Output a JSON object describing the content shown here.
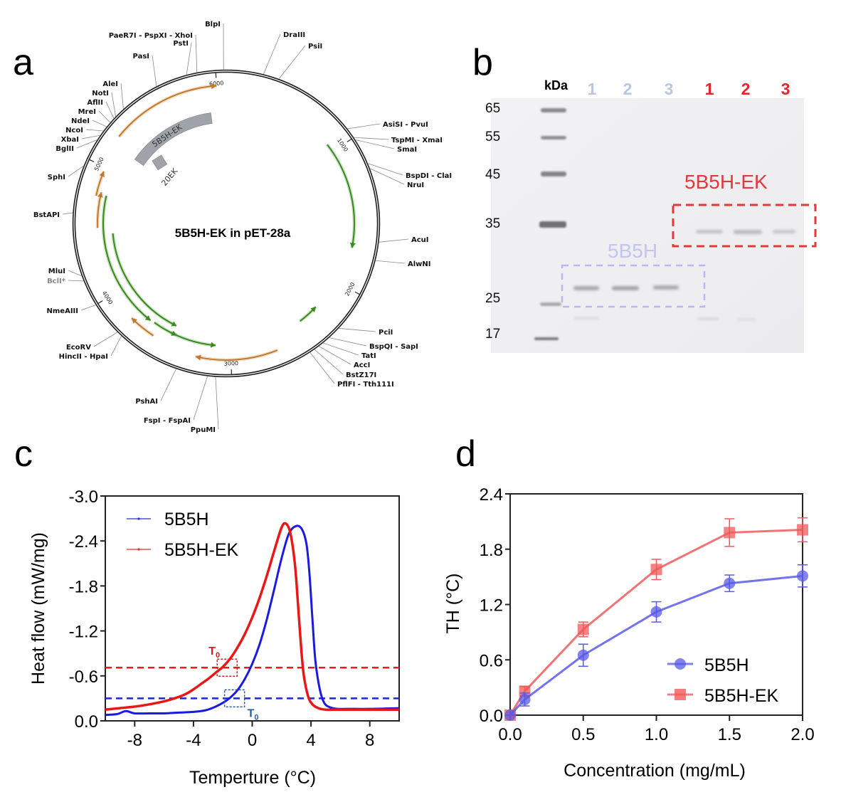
{
  "panels": {
    "a": {
      "letter": "a"
    },
    "b": {
      "letter": "b"
    },
    "c": {
      "letter": "c"
    },
    "d": {
      "letter": "d"
    }
  },
  "plasmid": {
    "title": "5B5H-EK in pET-28a",
    "features": [
      {
        "name": "5B5H-EK",
        "type": "insert"
      },
      {
        "name": "20EK",
        "type": "insert"
      }
    ],
    "position_ticks": [
      "1000",
      "2000",
      "3000",
      "4000",
      "5000",
      "6000"
    ],
    "restriction_sites": [
      {
        "label": "BlpI",
        "side": "top"
      },
      {
        "label": "PaeR7I - PspXI - XhoI",
        "side": "top"
      },
      {
        "label": "PstI",
        "side": "top"
      },
      {
        "label": "PasI",
        "side": "top"
      },
      {
        "label": "DraIII",
        "side": "top"
      },
      {
        "label": "PsiI",
        "side": "top"
      },
      {
        "label": "AleI",
        "side": "left"
      },
      {
        "label": "NotI",
        "side": "left"
      },
      {
        "label": "AflII",
        "side": "left"
      },
      {
        "label": "MreI",
        "side": "left"
      },
      {
        "label": "NdeI",
        "side": "left"
      },
      {
        "label": "NcoI",
        "side": "left"
      },
      {
        "label": "XbaI",
        "side": "left"
      },
      {
        "label": "BglII",
        "side": "left"
      },
      {
        "label": "SphI",
        "side": "left"
      },
      {
        "label": "BstAPI",
        "side": "left"
      },
      {
        "label": "MluI",
        "side": "left"
      },
      {
        "label": "BclI*",
        "side": "left",
        "muted": true
      },
      {
        "label": "NmeAIII",
        "side": "left"
      },
      {
        "label": "EcoRV",
        "side": "left"
      },
      {
        "label": "HincII - HpaI",
        "side": "left"
      },
      {
        "label": "PshAI",
        "side": "bottom"
      },
      {
        "label": "FspI - FspAI",
        "side": "bottom"
      },
      {
        "label": "PpuMI",
        "side": "bottom"
      },
      {
        "label": "AsiSI - PvuI",
        "side": "right"
      },
      {
        "label": "TspMI - XmaI",
        "side": "right"
      },
      {
        "label": "SmaI",
        "side": "right"
      },
      {
        "label": "BspDI - ClaI",
        "side": "right"
      },
      {
        "label": "NruI",
        "side": "right"
      },
      {
        "label": "AcuI",
        "side": "right"
      },
      {
        "label": "AlwNI",
        "side": "right"
      },
      {
        "label": "PciI",
        "side": "right"
      },
      {
        "label": "BspQI - SapI",
        "side": "right"
      },
      {
        "label": "TatI",
        "side": "right"
      },
      {
        "label": "AccI",
        "side": "right"
      },
      {
        "label": "BstZ17I",
        "side": "right"
      },
      {
        "label": "PflFI - Tth111I",
        "side": "right"
      }
    ],
    "colors": {
      "backbone": "#222222",
      "orf_orange": "#c07a2a",
      "orf_green": "#3a8a1e",
      "insert": "#a0a4aa"
    }
  },
  "gel": {
    "unit_label": "kDa",
    "markers": [
      "65",
      "55",
      "45",
      "35",
      "25",
      "17"
    ],
    "lanes_5B5H": [
      "1",
      "2",
      "3"
    ],
    "lanes_5B5H_EK": [
      "1",
      "2",
      "3"
    ],
    "box_labels": {
      "5B5H": "5B5H",
      "5B5H_EK": "5B5H-EK"
    },
    "colors": {
      "5B5H": "#b9c6e6",
      "5B5H_EK": "#e3262e",
      "5B5H_box": "#b8b8ee",
      "5B5H_EK_box": "#e03a3a"
    }
  },
  "chart_data": [
    {
      "id": "c",
      "type": "line",
      "title": "",
      "xlabel": "Temperture (°C)",
      "ylabel": "Heat flow (mW/mg)",
      "xlim": [
        -10,
        10
      ],
      "ylim": [
        0.0,
        -3.0
      ],
      "xticks": [
        "-8",
        "-4",
        "0",
        "4",
        "8"
      ],
      "xtick_values": [
        -8,
        -4,
        0,
        4,
        8
      ],
      "yticks": [
        "-3.0",
        "-2.4",
        "-1.8",
        "-1.2",
        "-0.6",
        "0.0"
      ],
      "ytick_values": [
        -3.0,
        -2.4,
        -1.8,
        -1.2,
        -0.6,
        0.0
      ],
      "legend_position": "top-left",
      "series": [
        {
          "name": "5B5H",
          "color": "#1a1ae0",
          "x": [
            -10,
            -9.2,
            -8.6,
            -8.0,
            -7,
            -6,
            -5,
            -4,
            -3.2,
            -2.6,
            -2.0,
            -1.5,
            -1.0,
            -0.5,
            0.0,
            0.5,
            1.0,
            1.5,
            2.0,
            2.5,
            3.0,
            3.4,
            3.7,
            3.9,
            4.1,
            4.3,
            4.6,
            4.9,
            5.3,
            5.8,
            6.5,
            8,
            10
          ],
          "y": [
            -0.08,
            -0.09,
            -0.13,
            -0.1,
            -0.1,
            -0.1,
            -0.11,
            -0.12,
            -0.14,
            -0.18,
            -0.24,
            -0.31,
            -0.41,
            -0.56,
            -0.76,
            -1.02,
            -1.36,
            -1.76,
            -2.17,
            -2.5,
            -2.6,
            -2.55,
            -2.35,
            -1.95,
            -1.35,
            -0.8,
            -0.42,
            -0.24,
            -0.18,
            -0.16,
            -0.16,
            -0.16,
            -0.17
          ]
        },
        {
          "name": "5B5H-EK",
          "color": "#e81818",
          "x": [
            -10,
            -9,
            -8,
            -7,
            -6,
            -5,
            -4.5,
            -4,
            -3.5,
            -3.0,
            -2.5,
            -2.0,
            -1.5,
            -1.0,
            -0.5,
            0.0,
            0.5,
            1.0,
            1.5,
            2.0,
            2.3,
            2.6,
            2.9,
            3.1,
            3.3,
            3.5,
            3.8,
            4.1,
            4.5,
            5.0,
            6.0,
            8,
            10
          ],
          "y": [
            -0.15,
            -0.17,
            -0.19,
            -0.22,
            -0.26,
            -0.32,
            -0.36,
            -0.42,
            -0.49,
            -0.56,
            -0.64,
            -0.72,
            -0.83,
            -0.98,
            -1.16,
            -1.38,
            -1.64,
            -1.94,
            -2.27,
            -2.58,
            -2.63,
            -2.5,
            -2.1,
            -1.6,
            -1.05,
            -0.62,
            -0.33,
            -0.22,
            -0.17,
            -0.15,
            -0.15,
            -0.15,
            -0.15
          ]
        }
      ],
      "reference_lines": [
        {
          "name": "5B5H T0 baseline",
          "y": -0.3,
          "color": "#1a2ad0",
          "style": "dashed"
        },
        {
          "name": "5B5H-EK T0 baseline",
          "y": -0.71,
          "color": "#e02020",
          "style": "dashed"
        }
      ],
      "annotations": [
        {
          "text": "T",
          "sub": "0",
          "series": "5B5H-EK",
          "x": -1.9,
          "y": -0.71,
          "color": "#d42020"
        },
        {
          "text": "T",
          "sub": "0",
          "series": "5B5H",
          "x": -1.3,
          "y": -0.3,
          "color": "#2a5aa0"
        }
      ]
    },
    {
      "id": "d",
      "type": "line",
      "title": "",
      "xlabel": "Concentration (mg/mL)",
      "ylabel": "TH (°C)",
      "xlim": [
        0.0,
        2.0
      ],
      "ylim": [
        0.0,
        2.4
      ],
      "xticks": [
        "0.0",
        "0.5",
        "1.0",
        "1.5",
        "2.0"
      ],
      "xtick_values": [
        0.0,
        0.5,
        1.0,
        1.5,
        2.0
      ],
      "yticks": [
        "0.0",
        "0.6",
        "1.2",
        "1.8",
        "2.4"
      ],
      "ytick_values": [
        0.0,
        0.6,
        1.2,
        1.8,
        2.4
      ],
      "legend_position": "bottom-right",
      "series": [
        {
          "name": "5B5H",
          "marker": "circle",
          "color": "#5a5ae8",
          "x": [
            0.0,
            0.1,
            0.5,
            1.0,
            1.5,
            2.0
          ],
          "y": [
            0.0,
            0.17,
            0.65,
            1.12,
            1.43,
            1.51
          ],
          "error": [
            0.0,
            0.07,
            0.12,
            0.11,
            0.09,
            0.12
          ]
        },
        {
          "name": "5B5H-EK",
          "marker": "square",
          "color": "#f05a5a",
          "x": [
            0.0,
            0.1,
            0.5,
            1.0,
            1.5,
            2.0
          ],
          "y": [
            0.0,
            0.26,
            0.93,
            1.58,
            1.98,
            2.01
          ],
          "error": [
            0.0,
            0.05,
            0.08,
            0.11,
            0.15,
            0.13
          ]
        }
      ]
    }
  ]
}
